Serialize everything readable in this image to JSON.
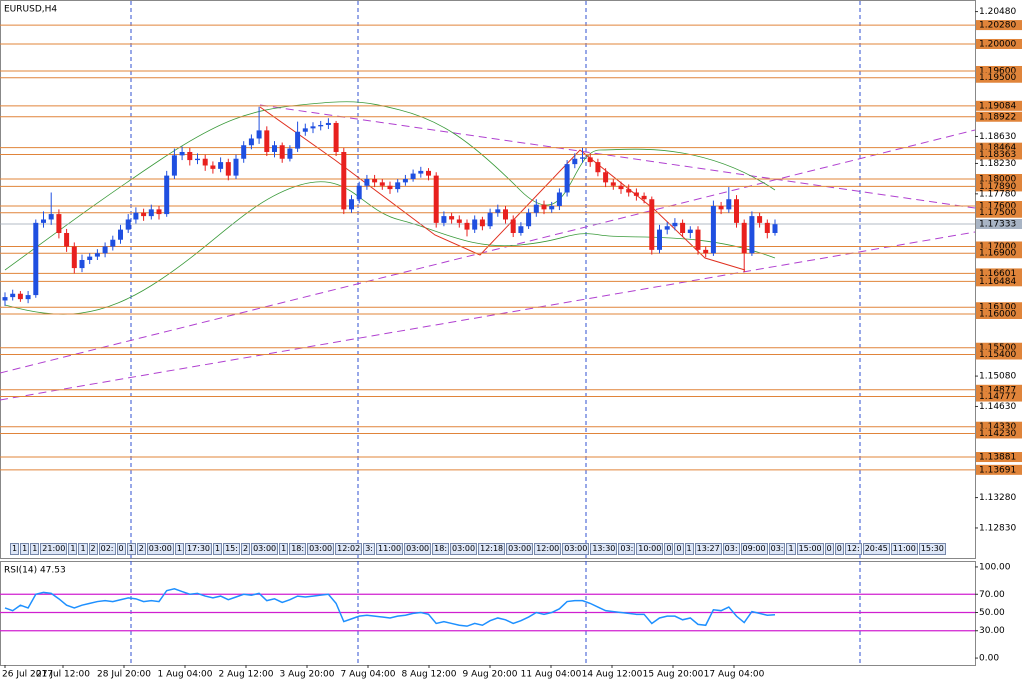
{
  "chart_data": {
    "type": "candlestick",
    "title": "EURUSD,H4",
    "ylim": [
      1.12385,
      1.20622
    ],
    "yticks": [
      {
        "value": 1.2048,
        "label": "1.20480"
      },
      {
        "value": 1.1863,
        "label": "1.18630"
      },
      {
        "value": 1.1823,
        "label": "1.18230"
      },
      {
        "value": 1.1778,
        "label": "1.17780"
      },
      {
        "value": 1.1508,
        "label": "1.15080"
      },
      {
        "value": 1.1463,
        "label": "1.14630"
      },
      {
        "value": 1.1328,
        "label": "1.13280"
      },
      {
        "value": 1.1283,
        "label": "1.12830"
      }
    ],
    "levels": [
      {
        "value": 1.2028,
        "label": "1.20280"
      },
      {
        "value": 1.2,
        "label": "1.20000"
      },
      {
        "value": 1.196,
        "label": "1.19600"
      },
      {
        "value": 1.195,
        "label": "1.19500"
      },
      {
        "value": 1.19084,
        "label": "1.19084"
      },
      {
        "value": 1.18922,
        "label": "1.18922"
      },
      {
        "value": 1.18464,
        "label": "1.18464"
      },
      {
        "value": 1.18363,
        "label": "1.18363"
      },
      {
        "value": 1.18,
        "label": "1.18000"
      },
      {
        "value": 1.1789,
        "label": "1.17890"
      },
      {
        "value": 1.176,
        "label": "1.17600"
      },
      {
        "value": 1.175,
        "label": "1.17500"
      },
      {
        "value": 1.17,
        "label": "1.17000"
      },
      {
        "value": 1.169,
        "label": "1.16900"
      },
      {
        "value": 1.16601,
        "label": "1.16601"
      },
      {
        "value": 1.16484,
        "label": "1.16484"
      },
      {
        "value": 1.161,
        "label": "1.16100"
      },
      {
        "value": 1.16,
        "label": "1.16000"
      },
      {
        "value": 1.155,
        "label": "1.15500"
      },
      {
        "value": 1.154,
        "label": "1.15400"
      },
      {
        "value": 1.14877,
        "label": "1.14877"
      },
      {
        "value": 1.14777,
        "label": "1.14777"
      },
      {
        "value": 1.1433,
        "label": "1.14330"
      },
      {
        "value": 1.1423,
        "label": "1.14230"
      },
      {
        "value": 1.13881,
        "label": "1.13881"
      },
      {
        "value": 1.13691,
        "label": "1.13691"
      }
    ],
    "level_color": "#e0843a",
    "current_price": {
      "value": 1.17333,
      "label": "1.17333"
    },
    "bull_color": "#1f4fe0",
    "bear_color": "#e8201e",
    "ohlc": [
      [
        1.162,
        1.1632,
        1.1612,
        1.1625
      ],
      [
        1.1625,
        1.1636,
        1.162,
        1.163
      ],
      [
        1.163,
        1.1634,
        1.1618,
        1.1622
      ],
      [
        1.1622,
        1.1634,
        1.1616,
        1.1628
      ],
      [
        1.1628,
        1.174,
        1.1624,
        1.1735
      ],
      [
        1.1735,
        1.1752,
        1.1728,
        1.174
      ],
      [
        1.174,
        1.178,
        1.1732,
        1.1748
      ],
      [
        1.1748,
        1.1755,
        1.1712,
        1.172
      ],
      [
        1.172,
        1.1726,
        1.1692,
        1.17
      ],
      [
        1.17,
        1.1706,
        1.166,
        1.1668
      ],
      [
        1.1668,
        1.1688,
        1.1662,
        1.168
      ],
      [
        1.168,
        1.169,
        1.1674,
        1.1685
      ],
      [
        1.1685,
        1.1696,
        1.168,
        1.169
      ],
      [
        1.169,
        1.1706,
        1.1684,
        1.17
      ],
      [
        1.17,
        1.1716,
        1.1694,
        1.171
      ],
      [
        1.171,
        1.1732,
        1.1704,
        1.1725
      ],
      [
        1.1725,
        1.1748,
        1.172,
        1.174
      ],
      [
        1.174,
        1.1758,
        1.1734,
        1.175
      ],
      [
        1.175,
        1.1756,
        1.1738,
        1.1745
      ],
      [
        1.1745,
        1.1762,
        1.174,
        1.1755
      ],
      [
        1.1755,
        1.176,
        1.174,
        1.1748
      ],
      [
        1.1748,
        1.1812,
        1.1744,
        1.1805
      ],
      [
        1.1805,
        1.1845,
        1.18,
        1.1835
      ],
      [
        1.1835,
        1.1848,
        1.1828,
        1.184
      ],
      [
        1.184,
        1.1846,
        1.182,
        1.1828
      ],
      [
        1.1828,
        1.1838,
        1.1822,
        1.183
      ],
      [
        1.183,
        1.1836,
        1.1812,
        1.182
      ],
      [
        1.182,
        1.1826,
        1.1808,
        1.1815
      ],
      [
        1.1815,
        1.1832,
        1.181,
        1.1825
      ],
      [
        1.1825,
        1.183,
        1.1798,
        1.1805
      ],
      [
        1.1805,
        1.1836,
        1.18,
        1.183
      ],
      [
        1.183,
        1.1856,
        1.1824,
        1.185
      ],
      [
        1.185,
        1.1866,
        1.1844,
        1.186
      ],
      [
        1.186,
        1.1907,
        1.1852,
        1.1872
      ],
      [
        1.1872,
        1.1878,
        1.1834,
        1.184
      ],
      [
        1.184,
        1.1856,
        1.1832,
        1.185
      ],
      [
        1.185,
        1.1854,
        1.1824,
        1.183
      ],
      [
        1.183,
        1.185,
        1.1826,
        1.1845
      ],
      [
        1.1845,
        1.1885,
        1.184,
        1.187
      ],
      [
        1.187,
        1.1882,
        1.1864,
        1.1875
      ],
      [
        1.1875,
        1.1884,
        1.1868,
        1.1878
      ],
      [
        1.1878,
        1.1886,
        1.1872,
        1.188
      ],
      [
        1.188,
        1.189,
        1.1874,
        1.1883
      ],
      [
        1.1883,
        1.1886,
        1.1834,
        1.184
      ],
      [
        1.184,
        1.1846,
        1.1748,
        1.1755
      ],
      [
        1.1755,
        1.1776,
        1.175,
        1.177
      ],
      [
        1.177,
        1.1796,
        1.1764,
        1.179
      ],
      [
        1.179,
        1.1806,
        1.1784,
        1.18
      ],
      [
        1.18,
        1.1806,
        1.1788,
        1.1795
      ],
      [
        1.1795,
        1.18,
        1.1784,
        1.179
      ],
      [
        1.179,
        1.1796,
        1.1778,
        1.1785
      ],
      [
        1.1785,
        1.18,
        1.178,
        1.1795
      ],
      [
        1.1795,
        1.1806,
        1.179,
        1.18
      ],
      [
        1.18,
        1.1814,
        1.1796,
        1.1808
      ],
      [
        1.1808,
        1.1818,
        1.1802,
        1.1812
      ],
      [
        1.1812,
        1.1816,
        1.1798,
        1.1805
      ],
      [
        1.1805,
        1.181,
        1.1728,
        1.1735
      ],
      [
        1.1735,
        1.1752,
        1.173,
        1.1745
      ],
      [
        1.1745,
        1.175,
        1.1734,
        1.174
      ],
      [
        1.174,
        1.1746,
        1.1728,
        1.1735
      ],
      [
        1.1735,
        1.174,
        1.1715,
        1.1725
      ],
      [
        1.1725,
        1.1746,
        1.172,
        1.174
      ],
      [
        1.174,
        1.1744,
        1.1724,
        1.173
      ],
      [
        1.173,
        1.1756,
        1.1726,
        1.175
      ],
      [
        1.175,
        1.1762,
        1.1744,
        1.1755
      ],
      [
        1.1755,
        1.176,
        1.1734,
        1.174
      ],
      [
        1.174,
        1.1746,
        1.1714,
        1.172
      ],
      [
        1.172,
        1.1736,
        1.1716,
        1.173
      ],
      [
        1.173,
        1.1756,
        1.1726,
        1.175
      ],
      [
        1.175,
        1.177,
        1.1744,
        1.1762
      ],
      [
        1.1762,
        1.1768,
        1.1748,
        1.1755
      ],
      [
        1.1755,
        1.1766,
        1.175,
        1.176
      ],
      [
        1.176,
        1.1786,
        1.1754,
        1.178
      ],
      [
        1.178,
        1.1828,
        1.1774,
        1.1822
      ],
      [
        1.1822,
        1.1838,
        1.1816,
        1.183
      ],
      [
        1.183,
        1.1846,
        1.1824,
        1.1832
      ],
      [
        1.1832,
        1.1838,
        1.1818,
        1.1825
      ],
      [
        1.1825,
        1.183,
        1.1804,
        1.181
      ],
      [
        1.181,
        1.1816,
        1.1788,
        1.1795
      ],
      [
        1.1795,
        1.18,
        1.1784,
        1.179
      ],
      [
        1.179,
        1.1796,
        1.1778,
        1.1785
      ],
      [
        1.1785,
        1.1792,
        1.1774,
        1.178
      ],
      [
        1.178,
        1.1786,
        1.1768,
        1.1775
      ],
      [
        1.1775,
        1.178,
        1.1764,
        1.177
      ],
      [
        1.177,
        1.1774,
        1.1688,
        1.1695
      ],
      [
        1.1695,
        1.1732,
        1.169,
        1.1725
      ],
      [
        1.1725,
        1.1736,
        1.1718,
        1.173
      ],
      [
        1.173,
        1.1742,
        1.1724,
        1.1735
      ],
      [
        1.1735,
        1.174,
        1.1714,
        1.172
      ],
      [
        1.172,
        1.173,
        1.1712,
        1.1725
      ],
      [
        1.1725,
        1.173,
        1.1688,
        1.1695
      ],
      [
        1.1695,
        1.17,
        1.1684,
        1.169
      ],
      [
        1.169,
        1.1768,
        1.1686,
        1.176
      ],
      [
        1.176,
        1.1766,
        1.1748,
        1.1755
      ],
      [
        1.1755,
        1.1788,
        1.175,
        1.177
      ],
      [
        1.177,
        1.1776,
        1.1728,
        1.1735
      ],
      [
        1.1735,
        1.174,
        1.1662,
        1.169
      ],
      [
        1.169,
        1.1752,
        1.1686,
        1.1745
      ],
      [
        1.1745,
        1.175,
        1.1728,
        1.1735
      ],
      [
        1.1735,
        1.174,
        1.1712,
        1.172
      ],
      [
        1.172,
        1.174,
        1.1716,
        1.1733
      ]
    ],
    "time_labels": [
      "26 Jul 2017",
      "27 Jul 12:00",
      "28 Jul 20:00",
      "1 Aug 04:00",
      "2 Aug 12:00",
      "3 Aug 20:00",
      "7 Aug 04:00",
      "8 Aug 12:00",
      "9 Aug 20:00",
      "11 Aug 04:00",
      "14 Aug 12:00",
      "15 Aug 20:00",
      "17 Aug 04:00"
    ],
    "events": [
      "1",
      "1",
      "1",
      "21:00",
      "1",
      "1",
      "2",
      "02:",
      "0",
      "1",
      "2",
      "03:00",
      "1",
      "17:30",
      "1",
      "15:",
      "2",
      "03:00",
      "1",
      "18:",
      "03:00",
      "12:02",
      "3:",
      "11:00",
      "03:00",
      "18:",
      "03:00",
      "12:18",
      "03:00",
      "12:00",
      "03:00",
      "13:30",
      "03:",
      "10:00",
      "0",
      "0",
      "1",
      "13:27",
      "03:",
      "09:00",
      "03:",
      "1",
      "15:00",
      "0",
      "0",
      "12:",
      "20:45",
      "11:00",
      "15:30"
    ],
    "rsi": {
      "title": "RSI(14) 47.53",
      "color": "#1e90ff",
      "level_color": "#d020d0",
      "levels": [
        70,
        50,
        30
      ],
      "ylim": [
        -7.6,
        106.5
      ],
      "yticks": [
        {
          "value": 100,
          "label": "100.00"
        },
        {
          "value": 70,
          "label": "70.00"
        },
        {
          "value": 50,
          "label": "50.00"
        },
        {
          "value": 30,
          "label": "30.00"
        },
        {
          "value": 0,
          "label": "0.00"
        }
      ],
      "values": [
        55,
        52,
        58,
        55,
        70,
        72,
        71,
        65,
        58,
        55,
        58,
        60,
        62,
        63,
        62,
        64,
        66,
        65,
        62,
        63,
        62,
        74,
        76,
        73,
        70,
        71,
        68,
        66,
        68,
        64,
        67,
        70,
        69,
        71,
        63,
        65,
        61,
        64,
        68,
        67,
        68,
        69,
        70,
        60,
        40,
        43,
        46,
        47,
        46,
        45,
        44,
        46,
        47,
        49,
        50,
        48,
        38,
        40,
        38,
        36,
        35,
        38,
        36,
        41,
        44,
        42,
        38,
        41,
        45,
        50,
        48,
        50,
        54,
        62,
        63,
        63,
        60,
        56,
        52,
        51,
        50,
        49,
        48,
        48,
        38,
        44,
        46,
        46,
        42,
        44,
        37,
        36,
        53,
        52,
        56,
        46,
        39,
        51,
        49,
        47,
        47.53
      ]
    }
  }
}
